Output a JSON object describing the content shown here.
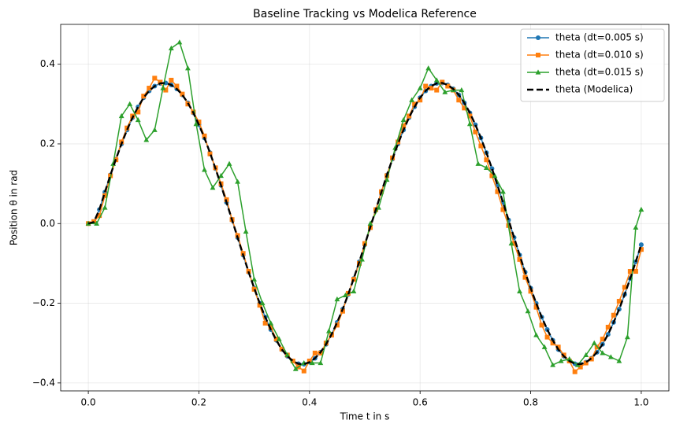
{
  "chart_data": {
    "type": "line",
    "title": "Baseline Tracking vs Modelica Reference",
    "xlabel": "Time t in s",
    "ylabel": "Position θ in rad",
    "xlim": [
      -0.05,
      1.05
    ],
    "ylim": [
      -0.42,
      0.5
    ],
    "xticks": [
      {
        "value": 0,
        "label": "0.0"
      },
      {
        "value": 0.2,
        "label": "0.2"
      },
      {
        "value": 0.4,
        "label": "0.4"
      },
      {
        "value": 0.6,
        "label": "0.6"
      },
      {
        "value": 0.8,
        "label": "0.8"
      },
      {
        "value": 1,
        "label": "1.0"
      }
    ],
    "yticks": [
      {
        "value": -0.4,
        "label": "−0.4"
      },
      {
        "value": -0.2,
        "label": "−0.2"
      },
      {
        "value": 0,
        "label": "0.0"
      },
      {
        "value": 0.2,
        "label": "0.2"
      },
      {
        "value": 0.4,
        "label": "0.4"
      }
    ],
    "grid": true,
    "legend": "upper right",
    "x": [
      0,
      0.01,
      0.02,
      0.03,
      0.04,
      0.05,
      0.06,
      0.07,
      0.08,
      0.09,
      0.1,
      0.11,
      0.12,
      0.13,
      0.14,
      0.15,
      0.16,
      0.17,
      0.18,
      0.19,
      0.2,
      0.21,
      0.22,
      0.23,
      0.24,
      0.25,
      0.26,
      0.27,
      0.28,
      0.29,
      0.3,
      0.31,
      0.32,
      0.33,
      0.34,
      0.35,
      0.36,
      0.37,
      0.38,
      0.39,
      0.4,
      0.41,
      0.42,
      0.43,
      0.44,
      0.45,
      0.46,
      0.47,
      0.48,
      0.49,
      0.5,
      0.51,
      0.52,
      0.53,
      0.54,
      0.55,
      0.56,
      0.57,
      0.58,
      0.59,
      0.6,
      0.61,
      0.62,
      0.63,
      0.64,
      0.65,
      0.66,
      0.67,
      0.68,
      0.69,
      0.7,
      0.71,
      0.72,
      0.73,
      0.74,
      0.75,
      0.76,
      0.77,
      0.78,
      0.79,
      0.8,
      0.81,
      0.82,
      0.83,
      0.84,
      0.85,
      0.86,
      0.87,
      0.88,
      0.89,
      0.9,
      0.91,
      0.92,
      0.93,
      0.94,
      0.95,
      0.96,
      0.97,
      0.98,
      0.99,
      1
    ],
    "series": [
      {
        "name": "theta (dt=0.005 s)",
        "color": "#1f77b4",
        "marker": "circle",
        "values": [
          0,
          0.004,
          0.035,
          0.079,
          0.122,
          0.162,
          0.2,
          0.235,
          0.266,
          0.293,
          0.316,
          0.333,
          0.345,
          0.352,
          0.353,
          0.348,
          0.338,
          0.323,
          0.303,
          0.278,
          0.248,
          0.215,
          0.178,
          0.138,
          0.096,
          0.053,
          0.009,
          -0.035,
          -0.079,
          -0.122,
          -0.162,
          -0.2,
          -0.235,
          -0.266,
          -0.293,
          -0.316,
          -0.333,
          -0.345,
          -0.352,
          -0.353,
          -0.348,
          -0.338,
          -0.323,
          -0.303,
          -0.278,
          -0.248,
          -0.215,
          -0.178,
          -0.138,
          -0.096,
          -0.053,
          -0.009,
          0.035,
          0.079,
          0.122,
          0.162,
          0.2,
          0.235,
          0.266,
          0.293,
          0.316,
          0.333,
          0.345,
          0.352,
          0.353,
          0.348,
          0.338,
          0.323,
          0.303,
          0.278,
          0.248,
          0.215,
          0.178,
          0.138,
          0.096,
          0.053,
          0.009,
          -0.035,
          -0.079,
          -0.122,
          -0.162,
          -0.2,
          -0.235,
          -0.266,
          -0.293,
          -0.316,
          -0.333,
          -0.345,
          -0.352,
          -0.353,
          -0.348,
          -0.338,
          -0.323,
          -0.303,
          -0.278,
          -0.248,
          -0.215,
          -0.178,
          -0.138,
          -0.096,
          -0.053
        ]
      },
      {
        "name": "theta (dt=0.010 s)",
        "color": "#ff7f0e",
        "marker": "square",
        "values": [
          0,
          0.005,
          0.02,
          0.07,
          0.12,
          0.16,
          0.205,
          0.24,
          0.27,
          0.28,
          0.32,
          0.34,
          0.365,
          0.355,
          0.335,
          0.36,
          0.345,
          0.325,
          0.3,
          0.28,
          0.255,
          0.22,
          0.175,
          0.14,
          0.1,
          0.06,
          0.01,
          -0.03,
          -0.075,
          -0.12,
          -0.165,
          -0.205,
          -0.25,
          -0.26,
          -0.29,
          -0.315,
          -0.33,
          -0.345,
          -0.36,
          -0.37,
          -0.345,
          -0.325,
          -0.325,
          -0.3,
          -0.28,
          -0.255,
          -0.22,
          -0.175,
          -0.14,
          -0.1,
          -0.05,
          -0.01,
          0.035,
          0.08,
          0.12,
          0.165,
          0.205,
          0.245,
          0.27,
          0.3,
          0.31,
          0.345,
          0.34,
          0.335,
          0.355,
          0.345,
          0.335,
          0.31,
          0.29,
          0.27,
          0.23,
          0.195,
          0.16,
          0.12,
          0.08,
          0.035,
          -0.005,
          -0.05,
          -0.09,
          -0.135,
          -0.17,
          -0.21,
          -0.255,
          -0.285,
          -0.3,
          -0.31,
          -0.33,
          -0.345,
          -0.372,
          -0.36,
          -0.35,
          -0.34,
          -0.31,
          -0.29,
          -0.26,
          -0.23,
          -0.195,
          -0.16,
          -0.12,
          -0.12,
          -0.065
        ]
      },
      {
        "name": "theta (dt=0.015 s)",
        "color": "#2ca02c",
        "marker": "triangle",
        "x": [
          0,
          0.015,
          0.03,
          0.045,
          0.06,
          0.075,
          0.09,
          0.105,
          0.12,
          0.135,
          0.15,
          0.165,
          0.18,
          0.195,
          0.21,
          0.225,
          0.24,
          0.255,
          0.27,
          0.285,
          0.3,
          0.315,
          0.33,
          0.345,
          0.36,
          0.375,
          0.39,
          0.405,
          0.42,
          0.435,
          0.45,
          0.465,
          0.48,
          0.495,
          0.51,
          0.525,
          0.54,
          0.555,
          0.57,
          0.585,
          0.6,
          0.615,
          0.63,
          0.645,
          0.66,
          0.675,
          0.69,
          0.705,
          0.72,
          0.735,
          0.75,
          0.765,
          0.78,
          0.795,
          0.81,
          0.825,
          0.84,
          0.855,
          0.87,
          0.885,
          0.9,
          0.915,
          0.93,
          0.945,
          0.96,
          0.975,
          0.99,
          1
        ],
        "values": [
          0,
          0,
          0.04,
          0.15,
          0.27,
          0.3,
          0.26,
          0.21,
          0.235,
          0.34,
          0.44,
          0.455,
          0.39,
          0.25,
          0.135,
          0.09,
          0.12,
          0.15,
          0.105,
          -0.02,
          -0.14,
          -0.2,
          -0.25,
          -0.29,
          -0.33,
          -0.365,
          -0.35,
          -0.35,
          -0.35,
          -0.27,
          -0.19,
          -0.18,
          -0.17,
          -0.09,
          0,
          0.04,
          0.11,
          0.19,
          0.26,
          0.31,
          0.34,
          0.39,
          0.36,
          0.33,
          0.335,
          0.335,
          0.25,
          0.15,
          0.14,
          0.12,
          0.08,
          -0.05,
          -0.17,
          -0.22,
          -0.28,
          -0.31,
          -0.355,
          -0.345,
          -0.34,
          -0.355,
          -0.33,
          -0.3,
          -0.325,
          -0.335,
          -0.345,
          -0.285,
          -0.01,
          0.035
        ]
      },
      {
        "name": "theta (Modelica)",
        "color": "#000000",
        "dashed": true,
        "values": [
          0,
          0.004,
          0.035,
          0.079,
          0.122,
          0.162,
          0.2,
          0.235,
          0.266,
          0.293,
          0.316,
          0.333,
          0.345,
          0.352,
          0.353,
          0.348,
          0.338,
          0.323,
          0.303,
          0.278,
          0.248,
          0.215,
          0.178,
          0.138,
          0.096,
          0.053,
          0.009,
          -0.035,
          -0.079,
          -0.122,
          -0.162,
          -0.2,
          -0.235,
          -0.266,
          -0.293,
          -0.316,
          -0.333,
          -0.345,
          -0.352,
          -0.353,
          -0.348,
          -0.338,
          -0.323,
          -0.303,
          -0.278,
          -0.248,
          -0.215,
          -0.178,
          -0.138,
          -0.096,
          -0.053,
          -0.009,
          0.035,
          0.079,
          0.122,
          0.162,
          0.2,
          0.235,
          0.266,
          0.293,
          0.316,
          0.333,
          0.345,
          0.352,
          0.353,
          0.348,
          0.338,
          0.323,
          0.303,
          0.278,
          0.248,
          0.215,
          0.178,
          0.138,
          0.096,
          0.053,
          0.009,
          -0.035,
          -0.079,
          -0.122,
          -0.162,
          -0.2,
          -0.235,
          -0.266,
          -0.293,
          -0.316,
          -0.333,
          -0.345,
          -0.352,
          -0.353,
          -0.348,
          -0.338,
          -0.323,
          -0.303,
          -0.278,
          -0.248,
          -0.215,
          -0.178,
          -0.138,
          -0.096,
          -0.053
        ]
      }
    ]
  }
}
